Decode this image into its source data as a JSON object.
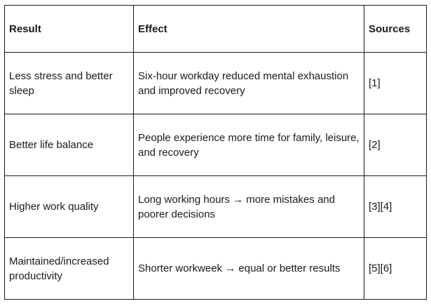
{
  "table": {
    "headers": [
      "Result",
      "Effect",
      "Sources"
    ],
    "rows": [
      {
        "result": "Less stress and better sleep",
        "effect": "Six-hour workday reduced mental exhaustion and improved recovery",
        "sources": "[1]"
      },
      {
        "result": "Better life balance",
        "effect": "People experience more time for family, leisure, and recovery",
        "sources": "[2]"
      },
      {
        "result": "Higher work quality",
        "effect": "Long working hours → more mistakes and poorer decisions",
        "sources": "[3][4]"
      },
      {
        "result": "Maintained/increased productivity",
        "effect": "Shorter workweek → equal or better results",
        "sources": "[5][6]"
      }
    ]
  }
}
